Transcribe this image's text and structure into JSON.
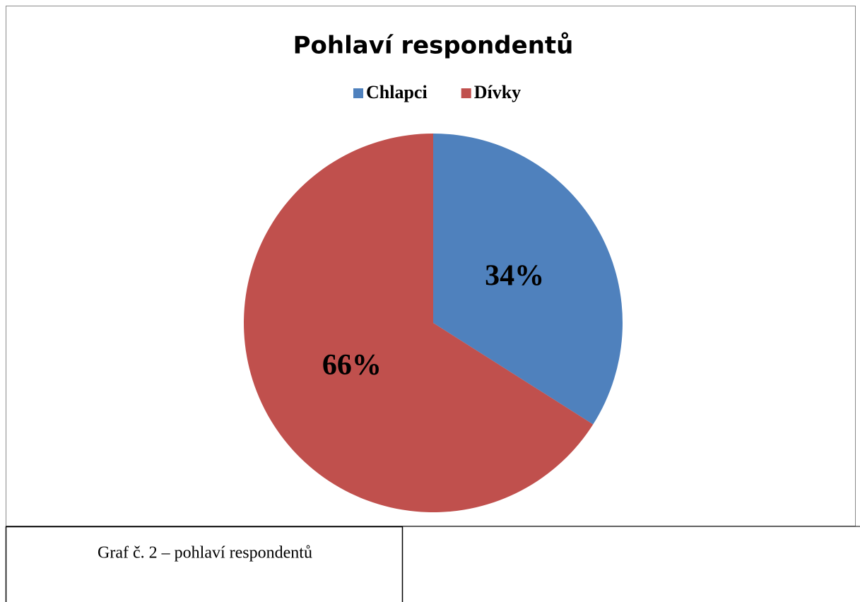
{
  "chart_data": {
    "type": "pie",
    "title": "Pohlaví respondentů",
    "categories": [
      "Chlapci",
      "Dívky"
    ],
    "values": [
      34,
      66
    ],
    "value_labels": [
      "34%",
      "66%"
    ],
    "colors": [
      "#4f81bd",
      "#c0504d"
    ],
    "legend": "top"
  },
  "caption": "Graf č. 2 – pohlaví respondentů"
}
